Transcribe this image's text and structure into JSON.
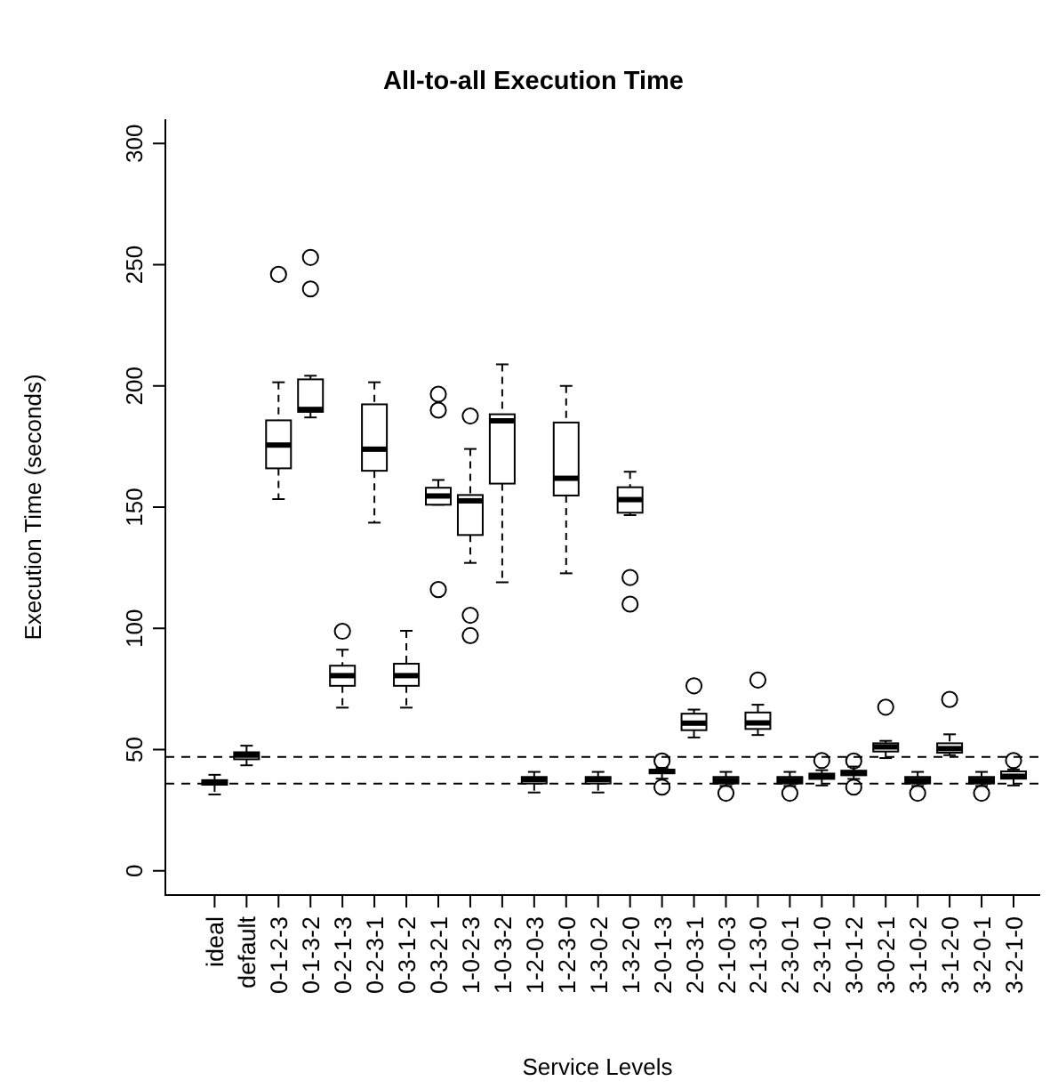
{
  "chart_data": {
    "type": "box",
    "title": "All-to-all Execution Time",
    "xlabel": "Service Levels",
    "ylabel": "Execution Time (seconds)",
    "categories": [
      "ideal",
      "default",
      "0-1-2-3",
      "0-1-3-2",
      "0-2-1-3",
      "0-2-3-1",
      "0-3-1-2",
      "0-3-2-1",
      "1-0-2-3",
      "1-0-3-2",
      "1-2-0-3",
      "1-2-3-0",
      "1-3-0-2",
      "1-3-2-0",
      "2-0-1-3",
      "2-0-3-1",
      "2-1-0-3",
      "2-1-3-0",
      "2-3-0-1",
      "2-3-1-0",
      "3-0-1-2",
      "3-0-2-1",
      "3-1-0-2",
      "3-1-2-0",
      "3-2-0-1",
      "3-2-1-0"
    ],
    "boxes": [
      {
        "low": 31.5,
        "q1": 35.5,
        "median": 36.4,
        "q3": 37.4,
        "high": 39.6
      },
      {
        "low": 43.5,
        "q1": 46,
        "median": 47.7,
        "q3": 48.9,
        "high": 51.6
      },
      {
        "low": 153.3,
        "q1": 166,
        "median": 175.6,
        "q3": 185.8,
        "high": 201.5,
        "outliers": [
          246
        ]
      },
      {
        "low": 187,
        "q1": 189.3,
        "median": 190.3,
        "q3": 202.7,
        "high": 204.2,
        "outliers": [
          240,
          253
        ]
      },
      {
        "low": 67.3,
        "q1": 76.3,
        "median": 80.5,
        "q3": 84.6,
        "high": 91.2,
        "outliers": [
          98.8
        ]
      },
      {
        "low": 143.6,
        "q1": 165,
        "median": 173.9,
        "q3": 192.4,
        "high": 201.5
      },
      {
        "low": 67.3,
        "q1": 76.3,
        "median": 80.5,
        "q3": 85.4,
        "high": 99
      },
      {
        "low": 151,
        "q1": 151,
        "median": 154.6,
        "q3": 158,
        "high": 161.2,
        "outliers": [
          116,
          190,
          196.6
        ]
      },
      {
        "low": 127,
        "q1": 138.5,
        "median": 152.6,
        "q3": 155,
        "high": 174,
        "outliers": [
          97,
          105.4,
          187.6
        ]
      },
      {
        "low": 119,
        "q1": 159.7,
        "median": 185.6,
        "q3": 188.3,
        "high": 208.9
      },
      {
        "low": 32.3,
        "q1": 36,
        "median": 37.6,
        "q3": 38.7,
        "high": 40.8
      },
      {
        "low": 122.7,
        "q1": 154.8,
        "median": 161.9,
        "q3": 184.9,
        "high": 200
      },
      {
        "low": 32.3,
        "q1": 36,
        "median": 37.6,
        "q3": 38.7,
        "high": 40.8
      },
      {
        "low": 146.7,
        "q1": 147.7,
        "median": 153.1,
        "q3": 158.2,
        "high": 164.6,
        "outliers": [
          110,
          121
        ]
      },
      {
        "low": 38,
        "q1": 40.2,
        "median": 41,
        "q3": 41.7,
        "high": 42.5,
        "outliers": [
          34.5,
          45.3
        ]
      },
      {
        "low": 55,
        "q1": 58,
        "median": 60.9,
        "q3": 64.8,
        "high": 66.5,
        "outliers": [
          76.3
        ]
      },
      {
        "low": 35,
        "q1": 36,
        "median": 37.3,
        "q3": 38.7,
        "high": 40.8,
        "outliers": [
          32
        ]
      },
      {
        "low": 56,
        "q1": 58.5,
        "median": 61,
        "q3": 65.3,
        "high": 68.5,
        "outliers": [
          78.7
        ]
      },
      {
        "low": 35,
        "q1": 36,
        "median": 37.3,
        "q3": 38.7,
        "high": 40.8,
        "outliers": [
          32
        ]
      },
      {
        "low": 35.2,
        "q1": 37.9,
        "median": 39,
        "q3": 40.1,
        "high": 41.5,
        "outliers": [
          45.5
        ]
      },
      {
        "low": 37.9,
        "q1": 39.4,
        "median": 40.3,
        "q3": 41.3,
        "high": 43,
        "outliers": [
          34.5,
          45.3
        ]
      },
      {
        "low": 46.5,
        "q1": 49.2,
        "median": 51.1,
        "q3": 52.6,
        "high": 53.6,
        "outliers": [
          67.5
        ]
      },
      {
        "low": 35,
        "q1": 36,
        "median": 37.3,
        "q3": 38.7,
        "high": 40.8,
        "outliers": [
          32
        ]
      },
      {
        "low": 47.7,
        "q1": 48.7,
        "median": 50.4,
        "q3": 52.6,
        "high": 56.3,
        "outliers": [
          70.7
        ]
      },
      {
        "low": 35,
        "q1": 36,
        "median": 37.3,
        "q3": 38.7,
        "high": 40.8,
        "outliers": [
          32
        ]
      },
      {
        "low": 35.2,
        "q1": 38,
        "median": 39,
        "q3": 41,
        "high": 41.8,
        "outliers": [
          45.5
        ]
      }
    ],
    "ylim": [
      -10,
      310
    ],
    "yticks": [
      0,
      50,
      100,
      150,
      200,
      250,
      300
    ],
    "ref_lines": [
      {
        "axis": "y",
        "value": 47,
        "line_style": "dashed"
      },
      {
        "axis": "y",
        "value": 36,
        "line_style": "dashed"
      }
    ]
  }
}
